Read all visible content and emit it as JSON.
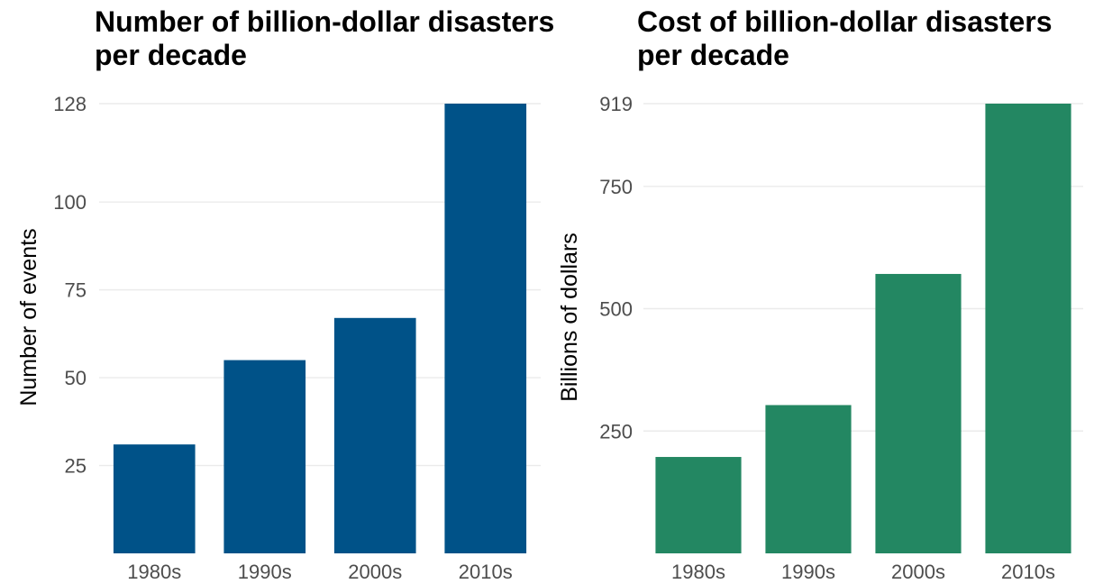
{
  "chart_data": [
    {
      "type": "bar",
      "title_lines": [
        "Number of billion-dollar disasters",
        "per decade"
      ],
      "xlabel": "",
      "ylabel": "Number of events",
      "categories": [
        "1980s",
        "1990s",
        "2000s",
        "2010s"
      ],
      "values": [
        31,
        55,
        67,
        128
      ],
      "yticks": [
        25,
        50,
        75,
        100,
        128
      ],
      "ylim": [
        0,
        128
      ],
      "grid": true,
      "legend": "none",
      "color": "#005288"
    },
    {
      "type": "bar",
      "title_lines": [
        "Cost of billion-dollar disasters",
        "per decade"
      ],
      "xlabel": "",
      "ylabel": "Billions of dollars",
      "categories": [
        "1980s",
        "1990s",
        "2000s",
        "2010s"
      ],
      "values": [
        197,
        303,
        571,
        919
      ],
      "yticks": [
        250,
        500,
        750,
        919
      ],
      "ylim": [
        0,
        919
      ],
      "grid": true,
      "legend": "none",
      "color": "#238762"
    }
  ]
}
